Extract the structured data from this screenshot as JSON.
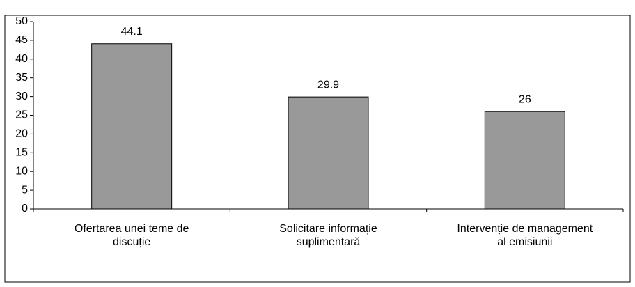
{
  "chart_data": {
    "type": "bar",
    "categories": [
      "Ofertarea unei teme de\ndiscuție",
      "Solicitare informație\nsuplimentară",
      "Intervenție de management\nal emisiunii"
    ],
    "values": [
      44.1,
      29.9,
      26
    ],
    "color": "#999999",
    "ylim": [
      0,
      50
    ],
    "yticks": [
      0,
      5,
      10,
      15,
      20,
      25,
      30,
      35,
      40,
      45,
      50
    ],
    "grid": false
  }
}
